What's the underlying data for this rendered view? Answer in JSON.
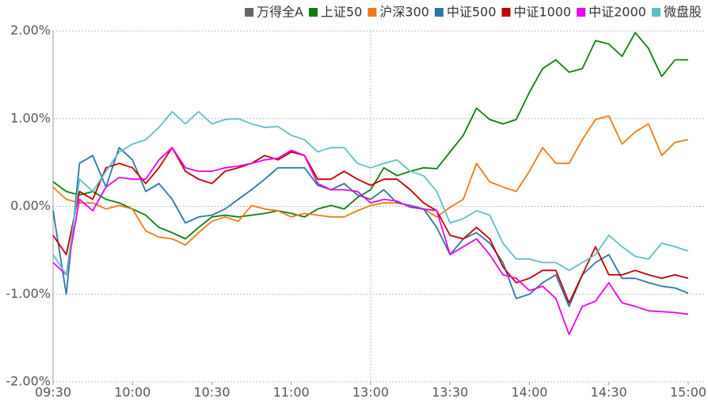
{
  "chart_data": {
    "type": "line",
    "categories": [
      "09:30",
      null,
      null,
      null,
      null,
      null,
      "10:00",
      null,
      null,
      null,
      null,
      null,
      "10:30",
      null,
      null,
      null,
      null,
      null,
      "11:00",
      null,
      null,
      null,
      null,
      null,
      "13:00",
      null,
      null,
      null,
      null,
      null,
      "13:30",
      null,
      null,
      null,
      null,
      null,
      "14:00",
      null,
      null,
      null,
      null,
      null,
      "14:30",
      null,
      null,
      null,
      null,
      null,
      "15:00"
    ],
    "series": [
      {
        "name": "万得全A",
        "color": "#666666",
        "values": [
          null,
          null,
          null,
          null,
          null,
          null,
          null,
          null,
          null,
          null,
          null,
          null,
          null,
          null,
          null,
          null,
          null,
          null,
          null,
          null,
          null,
          null,
          null,
          null,
          null,
          null,
          null,
          null,
          null,
          null,
          null,
          null,
          null,
          null,
          null,
          null,
          null,
          null,
          null,
          null,
          null,
          null,
          null,
          null,
          null,
          null,
          null,
          null,
          null
        ]
      },
      {
        "name": "上证50",
        "color": "#0f7d0f",
        "values": [
          0.28,
          0.17,
          0.13,
          0.17,
          0.08,
          0.04,
          -0.03,
          -0.1,
          -0.24,
          -0.3,
          -0.37,
          -0.24,
          -0.12,
          -0.1,
          -0.12,
          -0.1,
          -0.08,
          -0.05,
          -0.08,
          -0.12,
          -0.03,
          0.01,
          -0.03,
          0.1,
          0.19,
          0.44,
          0.35,
          0.4,
          0.44,
          0.43,
          0.62,
          0.81,
          1.12,
          0.99,
          0.94,
          0.99,
          1.3,
          1.57,
          1.67,
          1.53,
          1.57,
          1.89,
          1.85,
          1.71,
          1.98,
          1.8,
          1.48,
          1.67,
          1.67
        ]
      },
      {
        "name": "沪深300",
        "color": "#f07c14",
        "values": [
          0.22,
          0.08,
          0.04,
          0.04,
          -0.03,
          0.01,
          -0.03,
          -0.28,
          -0.35,
          -0.37,
          -0.44,
          -0.3,
          -0.17,
          -0.12,
          -0.17,
          0.01,
          -0.03,
          -0.05,
          -0.12,
          -0.08,
          -0.1,
          -0.12,
          -0.12,
          -0.05,
          0.01,
          0.04,
          0.04,
          0.01,
          -0.03,
          -0.12,
          -0.01,
          0.08,
          0.49,
          0.28,
          0.22,
          0.17,
          0.4,
          0.67,
          0.49,
          0.49,
          0.76,
          0.99,
          1.03,
          0.71,
          0.85,
          0.94,
          0.58,
          0.73,
          0.76
        ]
      },
      {
        "name": "中证500",
        "color": "#2b78a5",
        "values": [
          -0.05,
          -1.0,
          0.49,
          0.58,
          0.22,
          0.67,
          0.53,
          0.17,
          0.26,
          0.08,
          -0.19,
          -0.12,
          -0.1,
          -0.03,
          0.08,
          0.19,
          0.31,
          0.44,
          0.44,
          0.44,
          0.24,
          0.19,
          0.26,
          0.13,
          0.08,
          0.19,
          0.04,
          0.01,
          -0.03,
          -0.24,
          -0.55,
          -0.37,
          -0.3,
          -0.42,
          -0.64,
          -1.05,
          -1.0,
          -0.87,
          -0.78,
          -1.14,
          -0.78,
          -0.64,
          -0.55,
          -0.82,
          -0.82,
          -0.87,
          -0.91,
          -0.93,
          -0.99
        ]
      },
      {
        "name": "中证1000",
        "color": "#c40000",
        "values": [
          -0.33,
          -0.55,
          0.17,
          0.08,
          0.44,
          0.49,
          0.44,
          0.26,
          0.44,
          0.67,
          0.4,
          0.31,
          0.26,
          0.4,
          0.44,
          0.49,
          0.58,
          0.53,
          0.62,
          0.58,
          0.31,
          0.31,
          0.4,
          0.31,
          0.24,
          0.31,
          0.31,
          0.19,
          0.04,
          -0.05,
          -0.33,
          -0.37,
          -0.24,
          -0.37,
          -0.69,
          -0.87,
          -0.82,
          -0.73,
          -0.73,
          -1.1,
          -0.78,
          -0.46,
          -0.78,
          -0.78,
          -0.73,
          -0.78,
          -0.82,
          -0.78,
          -0.82
        ]
      },
      {
        "name": "中证2000",
        "color": "#ee00ee",
        "values": [
          -0.64,
          -0.78,
          0.08,
          -0.05,
          0.22,
          0.33,
          0.31,
          0.31,
          0.53,
          0.67,
          0.44,
          0.4,
          0.4,
          0.44,
          0.46,
          0.49,
          0.53,
          0.55,
          0.64,
          0.58,
          0.26,
          0.19,
          0.19,
          0.17,
          0.04,
          0.08,
          0.06,
          -0.01,
          -0.03,
          -0.05,
          -0.55,
          -0.46,
          -0.37,
          -0.55,
          -0.78,
          -0.82,
          -0.96,
          -0.91,
          -1.05,
          -1.46,
          -1.14,
          -1.08,
          -0.87,
          -1.1,
          -1.14,
          -1.19,
          -1.2,
          -1.21,
          -1.23
        ]
      },
      {
        "name": "微盘股",
        "color": "#5cbfc4",
        "values": [
          -0.55,
          -0.78,
          0.31,
          0.17,
          0.4,
          0.62,
          0.71,
          0.76,
          0.9,
          1.08,
          0.94,
          1.08,
          0.94,
          0.99,
          1.0,
          0.94,
          0.9,
          0.91,
          0.81,
          0.76,
          0.62,
          0.67,
          0.67,
          0.49,
          0.44,
          0.49,
          0.53,
          0.4,
          0.35,
          0.17,
          -0.19,
          -0.14,
          -0.05,
          -0.1,
          -0.42,
          -0.6,
          -0.6,
          -0.64,
          -0.64,
          -0.73,
          -0.64,
          -0.55,
          -0.33,
          -0.46,
          -0.57,
          -0.6,
          -0.42,
          -0.46,
          -0.51
        ]
      }
    ],
    "ylim": [
      -2,
      2
    ],
    "yticks": [
      {
        "value": -2,
        "label": "-2.00%"
      },
      {
        "value": -1,
        "label": "-1.00%"
      },
      {
        "value": 0,
        "label": "0.00%"
      },
      {
        "value": 1,
        "label": "1.00%"
      },
      {
        "value": 2,
        "label": "2.00%"
      }
    ],
    "grid": true
  }
}
